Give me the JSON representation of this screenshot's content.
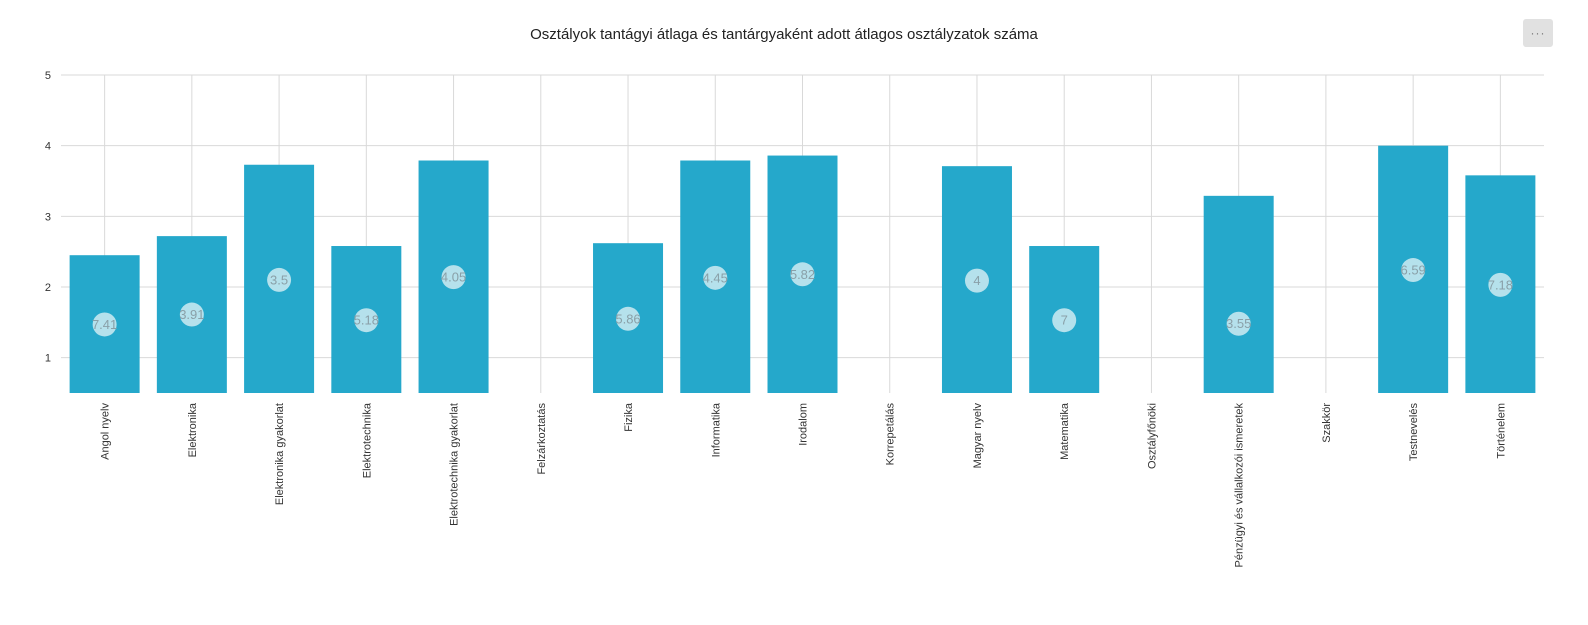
{
  "title": "Osztályok tantágyi átlaga és tantárgyaként adott átlagos osztályzatok száma",
  "menu": {
    "icon": "more-horizontal-icon",
    "glyph": "···"
  },
  "colors": {
    "bar": "#25a8cb",
    "marker": "#b5e1ec",
    "grid": "#d9d9d9",
    "label": "#8aa0a8"
  },
  "chart_data": {
    "type": "bar",
    "categories": [
      "Angol nyelv",
      "Elektronika",
      "Elektronika gyakorlat",
      "Elektrotechnika",
      "Elektrotechnika gyakorlat",
      "Felzárkoztatás",
      "Fizika",
      "Informatika",
      "Irodalom",
      "Korrepetálás",
      "Magyar nyelv",
      "Matematika",
      "Osztályfőnöki",
      "Pénzügyi és vállalkozói ismeretek",
      "Szakkör",
      "Testnevelés",
      "Történelem"
    ],
    "series": [
      {
        "type": "bar",
        "values": [
          2.45,
          2.72,
          3.73,
          2.58,
          3.79,
          null,
          2.62,
          3.79,
          3.86,
          null,
          3.71,
          2.58,
          null,
          3.29,
          null,
          4.0,
          3.58
        ]
      },
      {
        "type": "scatter",
        "values": [
          1.47,
          1.61,
          2.1,
          1.53,
          2.14,
          null,
          1.55,
          2.13,
          2.18,
          null,
          2.09,
          1.53,
          null,
          1.48,
          null,
          2.24,
          2.03
        ],
        "data_labels": [
          "7.41",
          "3.91",
          "3.5",
          "5.18",
          "4.05",
          null,
          "5.86",
          "4.45",
          "5.82",
          null,
          "4",
          "7",
          null,
          "3.55",
          null,
          "6.59",
          "7.18"
        ]
      }
    ],
    "ylim": [
      0.5,
      5
    ],
    "yticks": [
      1,
      2,
      3,
      4,
      5
    ],
    "grid": true,
    "xlabel": "",
    "ylabel": ""
  }
}
